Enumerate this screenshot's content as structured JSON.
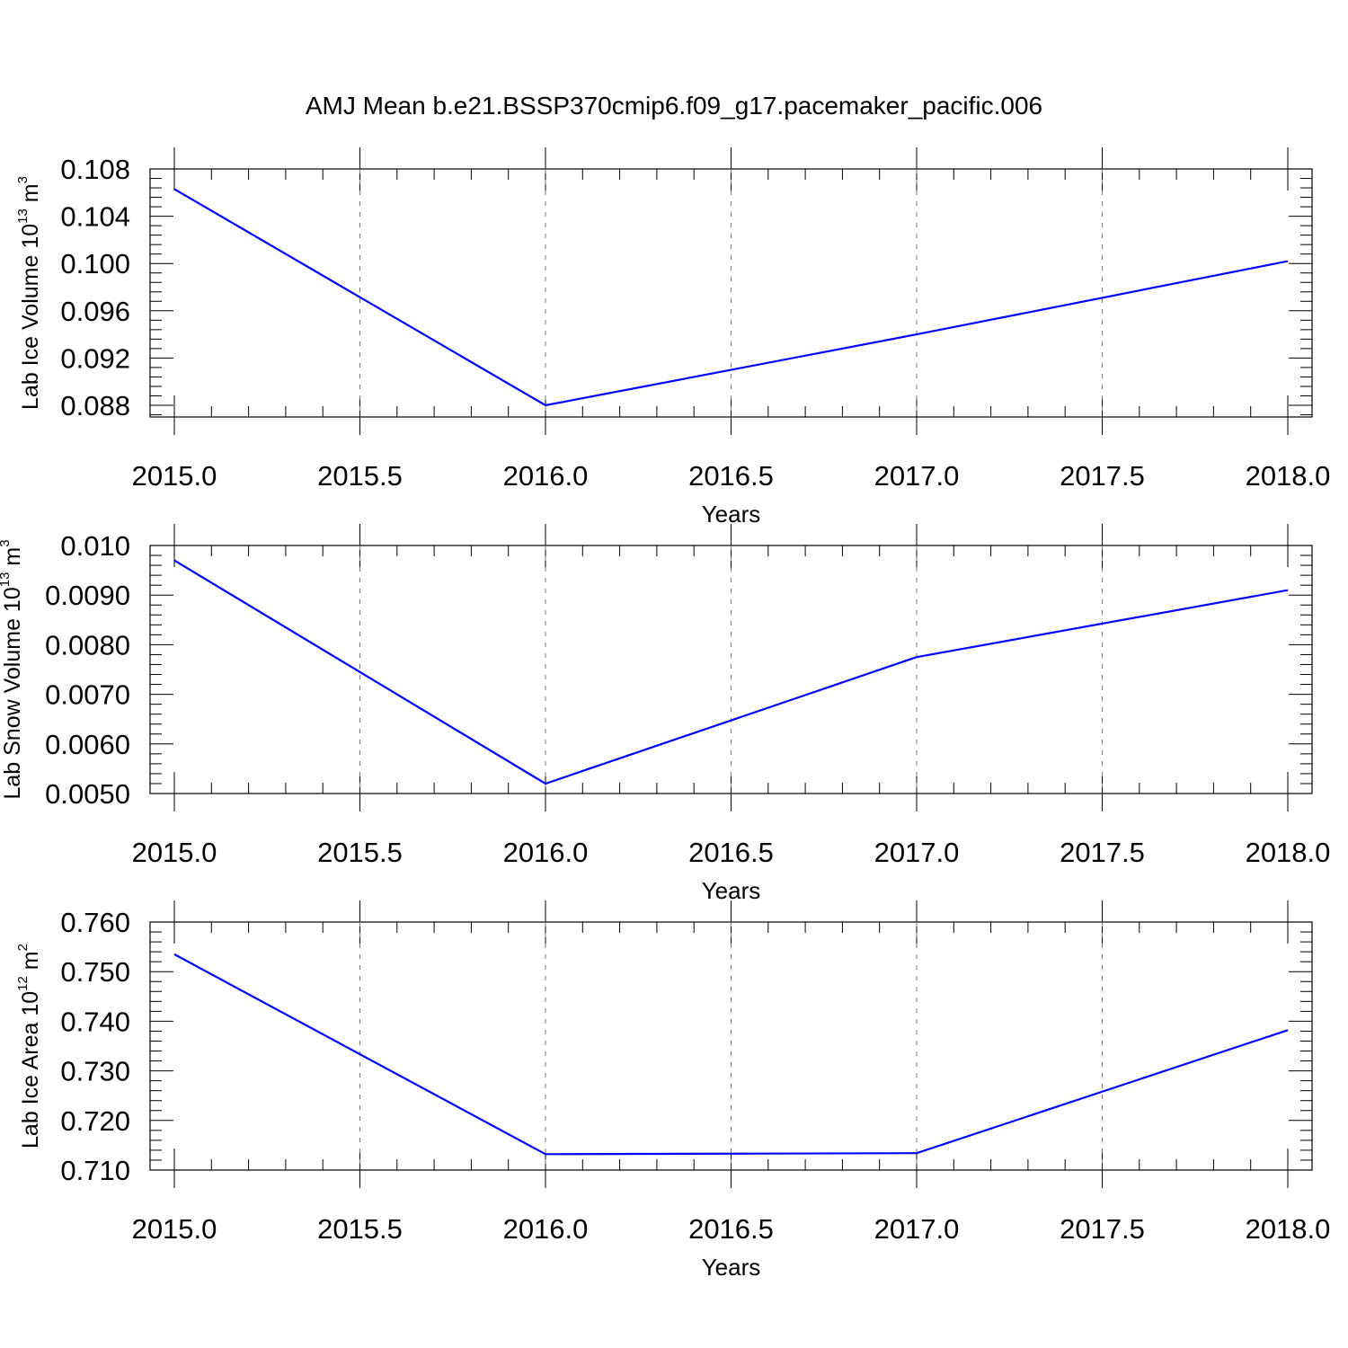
{
  "title": "AMJ Mean b.e21.BSSP370cmip6.f09_g17.pacemaker_pacific.006",
  "colors": {
    "series": "#0000ff",
    "axis": "#000000",
    "grid": "#777777"
  },
  "chart_data": [
    {
      "type": "line",
      "ylabel": {
        "prefix": "Lab Ice Volume 10",
        "exp": "13",
        "unit": " m",
        "unit_exp": "3"
      },
      "xlabel": "Years",
      "xlim": [
        2015.0,
        2018.0
      ],
      "ylim": [
        0.087,
        0.109
      ],
      "x_ticks": [
        "2015.0",
        "2015.5",
        "2016.0",
        "2016.5",
        "2017.0",
        "2017.5",
        "2018.0"
      ],
      "y_ticks": [
        "0.108",
        "0.104",
        "0.100",
        "0.096",
        "0.092",
        "0.088"
      ],
      "grid": "vertical-dashed",
      "x": [
        2015.0,
        2016.0,
        2017.0,
        2018.0
      ],
      "values": [
        0.1063,
        0.088,
        0.094,
        0.1002
      ]
    },
    {
      "type": "line",
      "ylabel": {
        "prefix": "Lab Snow Volume 10",
        "exp": "13",
        "unit": " m",
        "unit_exp": "3"
      },
      "xlabel": "Years",
      "xlim": [
        2015.0,
        2018.0
      ],
      "ylim": [
        0.005,
        0.01
      ],
      "x_ticks": [
        "2015.0",
        "2015.5",
        "2016.0",
        "2016.5",
        "2017.0",
        "2017.5",
        "2018.0"
      ],
      "y_ticks": [
        "0.010",
        "0.0090",
        "0.0080",
        "0.0070",
        "0.0060",
        "0.0050"
      ],
      "grid": "vertical-dashed",
      "x": [
        2015.0,
        2016.0,
        2017.0,
        2018.0
      ],
      "values": [
        0.0097,
        0.0052,
        0.00775,
        0.0091
      ]
    },
    {
      "type": "line",
      "ylabel": {
        "prefix": "Lab Ice Area 10",
        "exp": "12",
        "unit": " m",
        "unit_exp": "2"
      },
      "xlabel": "Years",
      "xlim": [
        2015.0,
        2018.0
      ],
      "ylim": [
        0.71,
        0.76
      ],
      "x_ticks": [
        "2015.0",
        "2015.5",
        "2016.0",
        "2016.5",
        "2017.0",
        "2017.5",
        "2018.0"
      ],
      "y_ticks": [
        "0.760",
        "0.750",
        "0.740",
        "0.730",
        "0.720",
        "0.710"
      ],
      "grid": "vertical-dashed",
      "x": [
        2015.0,
        2016.0,
        2017.0,
        2018.0
      ],
      "values": [
        0.7535,
        0.7132,
        0.7134,
        0.7382
      ]
    }
  ]
}
